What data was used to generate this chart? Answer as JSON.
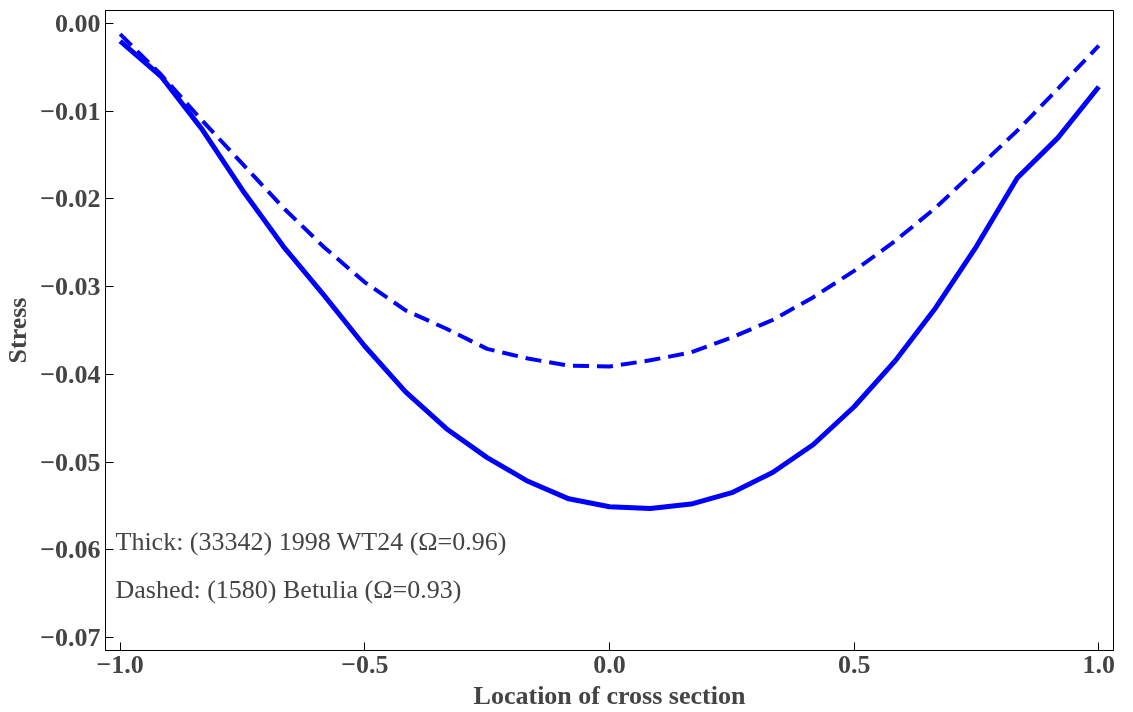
{
  "chart_data": {
    "type": "line",
    "xlabel": "Location of cross section",
    "ylabel": "Stress",
    "x": [
      -1.0,
      -0.9167,
      -0.8333,
      -0.75,
      -0.6667,
      -0.5833,
      -0.5,
      -0.4167,
      -0.3333,
      -0.25,
      -0.1667,
      -0.0833,
      0.0,
      0.0833,
      0.1667,
      0.25,
      0.3333,
      0.4167,
      0.5,
      0.5833,
      0.6667,
      0.75,
      0.8333,
      0.9167,
      1.0
    ],
    "series": [
      {
        "color": "#0000ff",
        "line_style": "solid",
        "values": [
          -0.002,
          -0.006,
          -0.012,
          -0.019,
          -0.0254,
          -0.031,
          -0.0368,
          -0.042,
          -0.0462,
          -0.0495,
          -0.0522,
          -0.0542,
          -0.0551,
          -0.0553,
          -0.0548,
          -0.0535,
          -0.0512,
          -0.048,
          -0.0437,
          -0.0385,
          -0.0324,
          -0.0254,
          -0.0176,
          -0.013,
          -0.0072
        ]
      },
      {
        "color": "#0000ff",
        "line_style": "dashed",
        "values": [
          -0.0012,
          -0.0058,
          -0.011,
          -0.016,
          -0.021,
          -0.0255,
          -0.0295,
          -0.0327,
          -0.0348,
          -0.0371,
          -0.0382,
          -0.039,
          -0.0391,
          -0.0384,
          -0.0375,
          -0.0358,
          -0.0338,
          -0.0312,
          -0.0282,
          -0.0248,
          -0.021,
          -0.0166,
          -0.0122,
          -0.0074,
          -0.0025
        ]
      }
    ],
    "xlim": [
      -1.03,
      1.03
    ],
    "ylim": [
      -0.0715,
      0.0015
    ],
    "xticks": [
      {
        "value": -1.0,
        "label": "−1.0"
      },
      {
        "value": -0.5,
        "label": "−0.5"
      },
      {
        "value": 0.0,
        "label": "0.0"
      },
      {
        "value": 0.5,
        "label": "0.5"
      },
      {
        "value": 1.0,
        "label": "1.0"
      }
    ],
    "yticks": [
      {
        "value": -0.07,
        "label": "−0.07"
      },
      {
        "value": -0.06,
        "label": "−0.06"
      },
      {
        "value": -0.05,
        "label": "−0.05"
      },
      {
        "value": -0.04,
        "label": "−0.04"
      },
      {
        "value": -0.03,
        "label": "−0.03"
      },
      {
        "value": -0.02,
        "label": "−0.02"
      },
      {
        "value": -0.01,
        "label": "−0.01"
      },
      {
        "value": 0.0,
        "label": "0.00"
      }
    ],
    "annotations": [
      "Thick: (33342) 1998 WT24 (Ω=0.96)",
      "Dashed: (1580) Betulia (Ω=0.93)"
    ],
    "grid": false
  }
}
